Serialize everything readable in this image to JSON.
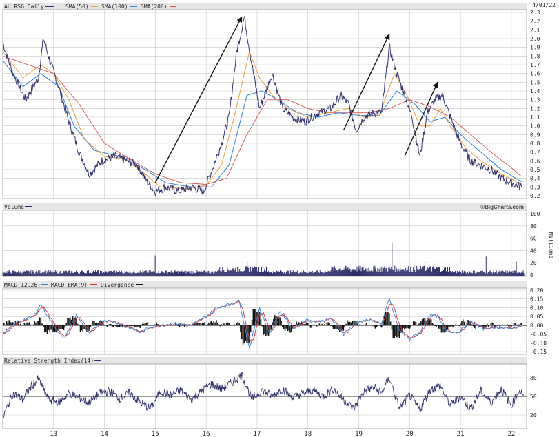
{
  "header": {
    "symbol": "AU:RSG Daily",
    "sma50": "SMA(50)",
    "sma100": "SMA(100)",
    "sma200": "SMA(200)",
    "date": "4/01/22"
  },
  "volume_panel": {
    "title": "Volume",
    "unit": "Millions",
    "credit": "©BigCharts.com"
  },
  "macd_panel": {
    "macd": "MACD(12,26)",
    "ema": "MACD EMA(9)",
    "divergence": "Divergence"
  },
  "rsi_panel": {
    "title": "Relative Strength Index(14)"
  },
  "colors": {
    "price": "#2e2e6a",
    "sma50": "#e8a040",
    "sma100": "#3b86d6",
    "sma200": "#d65050",
    "volume": "#2e2e6a",
    "macd": "#3b86d6",
    "ema": "#d63a3a",
    "divergence": "#111111",
    "rsi": "#2e2e6a",
    "arrows": "#111111",
    "panel_bar": "#e6e6e6"
  },
  "chart_data": {
    "type": "line",
    "x_labels": [
      "13",
      "14",
      "15",
      "16",
      "17",
      "18",
      "19",
      "20",
      "21",
      "22"
    ],
    "price": {
      "ylim": [
        0.2,
        2.3
      ],
      "yticks": [
        "2.3",
        "2.2",
        "2.1",
        "2.0",
        "1.9",
        "1.8",
        "1.7",
        "1.6",
        "1.5",
        "1.4",
        "1.3",
        "1.2",
        "1.1",
        "1.0",
        "0.9",
        "0.8",
        "0.7",
        "0.6",
        "0.5",
        "0.4",
        "0.3",
        "0.2"
      ],
      "series_close": [
        [
          12.0,
          1.95
        ],
        [
          12.2,
          1.6
        ],
        [
          12.45,
          1.3
        ],
        [
          12.7,
          1.55
        ],
        [
          12.8,
          2.0
        ],
        [
          12.95,
          1.7
        ],
        [
          13.1,
          1.45
        ],
        [
          13.3,
          1.05
        ],
        [
          13.5,
          0.7
        ],
        [
          13.7,
          0.45
        ],
        [
          13.95,
          0.6
        ],
        [
          14.2,
          0.65
        ],
        [
          14.45,
          0.6
        ],
        [
          14.65,
          0.55
        ],
        [
          14.85,
          0.35
        ],
        [
          15.0,
          0.25
        ],
        [
          15.2,
          0.3
        ],
        [
          15.45,
          0.25
        ],
        [
          15.7,
          0.3
        ],
        [
          15.95,
          0.25
        ],
        [
          16.15,
          0.55
        ],
        [
          16.3,
          0.8
        ],
        [
          16.45,
          1.1
        ],
        [
          16.6,
          1.85
        ],
        [
          16.75,
          2.25
        ],
        [
          16.9,
          1.7
        ],
        [
          17.05,
          1.2
        ],
        [
          17.3,
          1.6
        ],
        [
          17.5,
          1.2
        ],
        [
          17.7,
          1.1
        ],
        [
          17.95,
          1.05
        ],
        [
          18.2,
          1.15
        ],
        [
          18.45,
          1.2
        ],
        [
          18.65,
          1.35
        ],
        [
          18.8,
          1.25
        ],
        [
          18.95,
          0.95
        ],
        [
          19.1,
          1.1
        ],
        [
          19.3,
          1.15
        ],
        [
          19.45,
          1.15
        ],
        [
          19.6,
          1.9
        ],
        [
          19.75,
          1.6
        ],
        [
          19.9,
          1.35
        ],
        [
          20.05,
          1.1
        ],
        [
          20.2,
          0.65
        ],
        [
          20.35,
          1.15
        ],
        [
          20.5,
          1.3
        ],
        [
          20.65,
          1.35
        ],
        [
          20.8,
          1.1
        ],
        [
          21.0,
          0.8
        ],
        [
          21.2,
          0.6
        ],
        [
          21.4,
          0.55
        ],
        [
          21.6,
          0.5
        ],
        [
          21.8,
          0.4
        ],
        [
          22.0,
          0.35
        ],
        [
          22.2,
          0.3
        ]
      ],
      "series_sma50": [
        [
          12.0,
          1.85
        ],
        [
          12.4,
          1.55
        ],
        [
          12.75,
          1.7
        ],
        [
          13.0,
          1.6
        ],
        [
          13.3,
          1.3
        ],
        [
          13.6,
          0.85
        ],
        [
          14.0,
          0.65
        ],
        [
          14.4,
          0.62
        ],
        [
          14.8,
          0.45
        ],
        [
          15.1,
          0.3
        ],
        [
          15.6,
          0.28
        ],
        [
          16.0,
          0.32
        ],
        [
          16.3,
          0.55
        ],
        [
          16.55,
          1.1
        ],
        [
          16.85,
          1.85
        ],
        [
          17.05,
          1.55
        ],
        [
          17.3,
          1.35
        ],
        [
          17.6,
          1.2
        ],
        [
          18.0,
          1.1
        ],
        [
          18.4,
          1.15
        ],
        [
          18.8,
          1.2
        ],
        [
          19.1,
          1.1
        ],
        [
          19.4,
          1.12
        ],
        [
          19.7,
          1.6
        ],
        [
          19.95,
          1.35
        ],
        [
          20.2,
          1.0
        ],
        [
          20.4,
          1.0
        ],
        [
          20.6,
          1.2
        ],
        [
          20.8,
          1.0
        ],
        [
          21.1,
          0.75
        ],
        [
          21.4,
          0.6
        ],
        [
          21.8,
          0.45
        ],
        [
          22.2,
          0.33
        ]
      ],
      "series_sma100": [
        [
          12.0,
          1.75
        ],
        [
          12.4,
          1.45
        ],
        [
          12.75,
          1.6
        ],
        [
          13.1,
          1.45
        ],
        [
          13.4,
          1.0
        ],
        [
          13.8,
          0.72
        ],
        [
          14.3,
          0.65
        ],
        [
          14.8,
          0.5
        ],
        [
          15.2,
          0.35
        ],
        [
          15.7,
          0.3
        ],
        [
          16.1,
          0.3
        ],
        [
          16.45,
          0.55
        ],
        [
          16.8,
          1.35
        ],
        [
          17.1,
          1.4
        ],
        [
          17.4,
          1.3
        ],
        [
          17.8,
          1.15
        ],
        [
          18.2,
          1.1
        ],
        [
          18.6,
          1.15
        ],
        [
          19.0,
          1.12
        ],
        [
          19.4,
          1.12
        ],
        [
          19.75,
          1.4
        ],
        [
          20.1,
          1.25
        ],
        [
          20.4,
          1.05
        ],
        [
          20.7,
          1.1
        ],
        [
          21.0,
          0.9
        ],
        [
          21.4,
          0.7
        ],
        [
          21.8,
          0.5
        ],
        [
          22.2,
          0.36
        ]
      ],
      "series_sma200": [
        [
          12.0,
          1.8
        ],
        [
          12.5,
          1.7
        ],
        [
          13.0,
          1.6
        ],
        [
          13.5,
          1.25
        ],
        [
          14.0,
          0.8
        ],
        [
          14.5,
          0.62
        ],
        [
          15.0,
          0.45
        ],
        [
          15.5,
          0.35
        ],
        [
          16.0,
          0.33
        ],
        [
          16.4,
          0.4
        ],
        [
          16.8,
          0.9
        ],
        [
          17.2,
          1.3
        ],
        [
          17.6,
          1.3
        ],
        [
          18.0,
          1.2
        ],
        [
          18.4,
          1.15
        ],
        [
          18.8,
          1.15
        ],
        [
          19.2,
          1.15
        ],
        [
          19.6,
          1.2
        ],
        [
          20.0,
          1.3
        ],
        [
          20.4,
          1.22
        ],
        [
          20.8,
          1.1
        ],
        [
          21.2,
          0.9
        ],
        [
          21.6,
          0.7
        ],
        [
          22.0,
          0.52
        ],
        [
          22.2,
          0.42
        ]
      ]
    },
    "volume": {
      "ylim": [
        0,
        100
      ],
      "yticks": [
        "100",
        "80",
        "60",
        "40",
        "20",
        "0"
      ],
      "baseline": 5,
      "spikes": [
        [
          15.0,
          32
        ],
        [
          16.8,
          22
        ],
        [
          19.65,
          53
        ],
        [
          20.3,
          22
        ],
        [
          21.5,
          30
        ],
        [
          22.1,
          22
        ]
      ]
    },
    "macd": {
      "ylim": [
        -0.15,
        0.2
      ],
      "yticks": [
        "0.20",
        "0.15",
        "0.10",
        "0.05",
        "0.00",
        "-0.05",
        "-0.10",
        "-0.15"
      ],
      "series_macd": [
        [
          12.0,
          -0.05
        ],
        [
          12.3,
          0.02
        ],
        [
          12.6,
          0.05
        ],
        [
          12.75,
          0.12
        ],
        [
          12.95,
          0.02
        ],
        [
          13.2,
          -0.08
        ],
        [
          13.45,
          0.06
        ],
        [
          13.7,
          -0.05
        ],
        [
          13.95,
          0.03
        ],
        [
          14.2,
          0.02
        ],
        [
          14.45,
          -0.01
        ],
        [
          14.7,
          -0.04
        ],
        [
          14.9,
          -0.01
        ],
        [
          15.1,
          0.0
        ],
        [
          15.4,
          0.01
        ],
        [
          15.7,
          0.0
        ],
        [
          16.0,
          0.05
        ],
        [
          16.2,
          0.1
        ],
        [
          16.45,
          0.12
        ],
        [
          16.65,
          0.14
        ],
        [
          16.85,
          -0.13
        ],
        [
          17.05,
          0.1
        ],
        [
          17.25,
          -0.05
        ],
        [
          17.45,
          0.08
        ],
        [
          17.7,
          -0.02
        ],
        [
          17.95,
          0.03
        ],
        [
          18.2,
          0.02
        ],
        [
          18.45,
          0.04
        ],
        [
          18.7,
          -0.05
        ],
        [
          18.95,
          0.02
        ],
        [
          19.2,
          0.03
        ],
        [
          19.45,
          0.01
        ],
        [
          19.6,
          0.15
        ],
        [
          19.8,
          -0.03
        ],
        [
          20.0,
          -0.08
        ],
        [
          20.2,
          -0.04
        ],
        [
          20.4,
          0.06
        ],
        [
          20.55,
          0.05
        ],
        [
          20.7,
          -0.03
        ],
        [
          20.95,
          -0.04
        ],
        [
          21.2,
          0.02
        ],
        [
          21.45,
          -0.02
        ],
        [
          21.7,
          -0.01
        ],
        [
          21.95,
          -0.02
        ],
        [
          22.2,
          0.0
        ]
      ]
    },
    "rsi": {
      "ylim": [
        0,
        100
      ],
      "yticks": [
        "80",
        "50",
        "20"
      ],
      "series_rsi": [
        [
          12.0,
          15
        ],
        [
          12.2,
          55
        ],
        [
          12.4,
          45
        ],
        [
          12.55,
          65
        ],
        [
          12.7,
          78
        ],
        [
          12.9,
          45
        ],
        [
          13.1,
          40
        ],
        [
          13.3,
          55
        ],
        [
          13.5,
          48
        ],
        [
          13.7,
          40
        ],
        [
          13.9,
          55
        ],
        [
          14.1,
          58
        ],
        [
          14.3,
          47
        ],
        [
          14.5,
          55
        ],
        [
          14.7,
          40
        ],
        [
          14.9,
          30
        ],
        [
          15.1,
          58
        ],
        [
          15.3,
          52
        ],
        [
          15.5,
          60
        ],
        [
          15.7,
          45
        ],
        [
          15.9,
          58
        ],
        [
          16.1,
          70
        ],
        [
          16.3,
          62
        ],
        [
          16.5,
          72
        ],
        [
          16.7,
          85
        ],
        [
          16.9,
          45
        ],
        [
          17.1,
          60
        ],
        [
          17.3,
          50
        ],
        [
          17.5,
          62
        ],
        [
          17.7,
          48
        ],
        [
          17.9,
          55
        ],
        [
          18.1,
          60
        ],
        [
          18.3,
          50
        ],
        [
          18.5,
          62
        ],
        [
          18.7,
          45
        ],
        [
          18.9,
          30
        ],
        [
          19.1,
          58
        ],
        [
          19.3,
          65
        ],
        [
          19.45,
          55
        ],
        [
          19.6,
          80
        ],
        [
          19.8,
          30
        ],
        [
          20.0,
          52
        ],
        [
          20.2,
          28
        ],
        [
          20.4,
          60
        ],
        [
          20.6,
          68
        ],
        [
          20.8,
          35
        ],
        [
          21.0,
          50
        ],
        [
          21.2,
          30
        ],
        [
          21.4,
          58
        ],
        [
          21.6,
          40
        ],
        [
          21.8,
          62
        ],
        [
          22.0,
          35
        ],
        [
          22.15,
          60
        ],
        [
          22.25,
          52
        ]
      ]
    }
  }
}
